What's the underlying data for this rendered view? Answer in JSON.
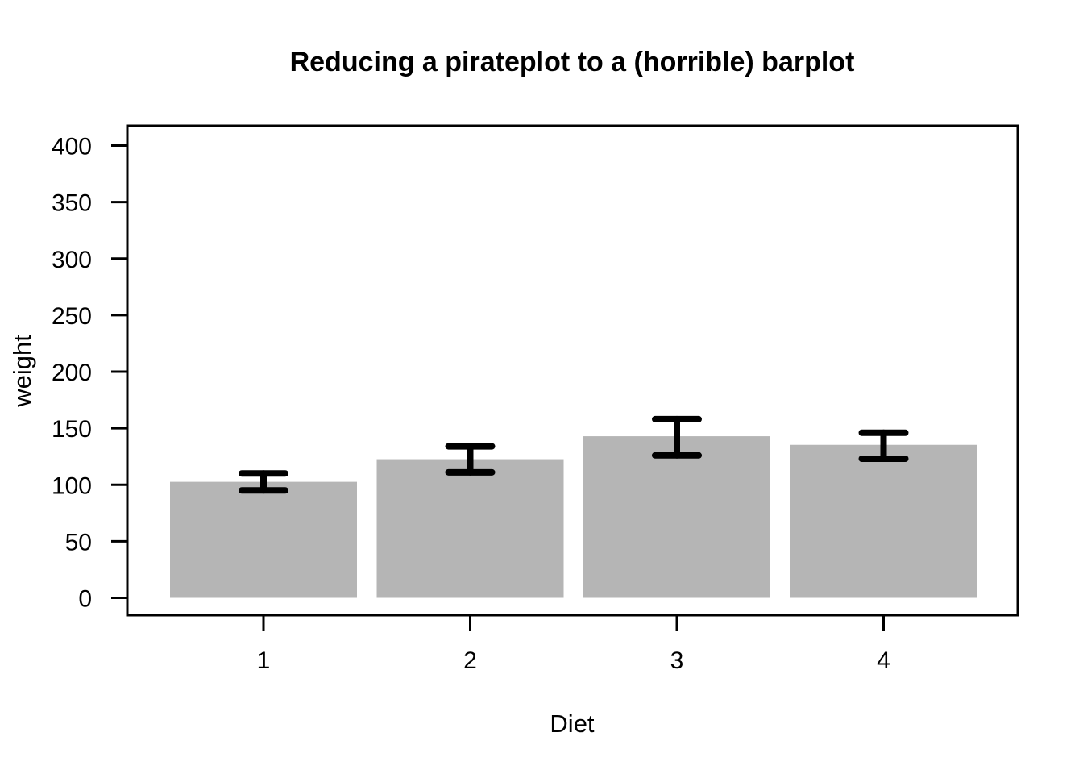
{
  "chart_data": {
    "type": "bar",
    "title": "Reducing a pirateplot to a (horrible) barplot",
    "xlabel": "Diet",
    "ylabel": "weight",
    "categories": [
      "1",
      "2",
      "3",
      "4"
    ],
    "values": [
      102.6,
      122.6,
      142.9,
      135.3
    ],
    "error_bars": {
      "lower": [
        95,
        111,
        126,
        123
      ],
      "upper": [
        110,
        134,
        158,
        146
      ]
    },
    "ylim": [
      0,
      400
    ],
    "yticks": [
      0,
      50,
      100,
      150,
      200,
      250,
      300,
      350,
      400
    ],
    "bar_color": "#b5b5b5",
    "error_bar_color": "#000000",
    "axis_color": "#000000",
    "background_color": "#ffffff",
    "grid": false,
    "legend": "none"
  }
}
